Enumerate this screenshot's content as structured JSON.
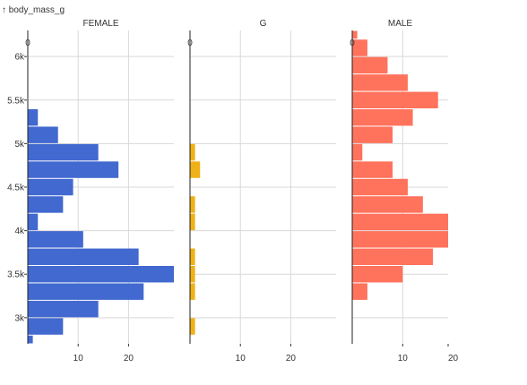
{
  "chart_data": {
    "type": "bar",
    "orientation": "horizontal",
    "ylabel": "↑ body_mass_g",
    "y_bin_width": 200,
    "ylim": [
      2700,
      6300
    ],
    "y_ticks": [
      3000,
      3500,
      4000,
      4500,
      5000,
      5500,
      6000
    ],
    "y_tick_labels": [
      "3k",
      "3.5k",
      "4k",
      "4.5k",
      "5k",
      "5.5k",
      "6k"
    ],
    "x_ticks": [
      0,
      10,
      20
    ],
    "x_tick_labels": [
      "0",
      "10",
      "20"
    ],
    "x_bottom_tick_labels": [
      "10",
      "20"
    ],
    "grid": true,
    "facets": [
      {
        "name": "FEMALE",
        "color": "#4269d0",
        "xlim": [
          0,
          29
        ],
        "bins": [
          {
            "y0": 2700,
            "y1": 2800,
            "value": 1
          },
          {
            "y0": 2800,
            "y1": 3000,
            "value": 7
          },
          {
            "y0": 3000,
            "y1": 3200,
            "value": 14
          },
          {
            "y0": 3200,
            "y1": 3400,
            "value": 23
          },
          {
            "y0": 3400,
            "y1": 3600,
            "value": 29
          },
          {
            "y0": 3600,
            "y1": 3800,
            "value": 22
          },
          {
            "y0": 3800,
            "y1": 4000,
            "value": 11
          },
          {
            "y0": 4000,
            "y1": 4200,
            "value": 2
          },
          {
            "y0": 4200,
            "y1": 4400,
            "value": 7
          },
          {
            "y0": 4400,
            "y1": 4600,
            "value": 9
          },
          {
            "y0": 4600,
            "y1": 4800,
            "value": 18
          },
          {
            "y0": 4800,
            "y1": 5000,
            "value": 14
          },
          {
            "y0": 5000,
            "y1": 5200,
            "value": 6
          },
          {
            "y0": 5200,
            "y1": 5400,
            "value": 2
          }
        ]
      },
      {
        "name": "G",
        "color": "#efb118",
        "xlim": [
          0,
          29
        ],
        "bins": [
          {
            "y0": 2800,
            "y1": 3000,
            "value": 1
          },
          {
            "y0": 3200,
            "y1": 3400,
            "value": 1
          },
          {
            "y0": 3400,
            "y1": 3600,
            "value": 1
          },
          {
            "y0": 3600,
            "y1": 3800,
            "value": 1
          },
          {
            "y0": 4000,
            "y1": 4200,
            "value": 1
          },
          {
            "y0": 4200,
            "y1": 4400,
            "value": 1
          },
          {
            "y0": 4600,
            "y1": 4800,
            "value": 2
          },
          {
            "y0": 4800,
            "y1": 5000,
            "value": 1
          }
        ]
      },
      {
        "name": "MALE",
        "color": "#ff725c",
        "xlim": [
          0,
          19
        ],
        "bins": [
          {
            "y0": 3200,
            "y1": 3400,
            "value": 3
          },
          {
            "y0": 3400,
            "y1": 3600,
            "value": 10
          },
          {
            "y0": 3600,
            "y1": 3800,
            "value": 16
          },
          {
            "y0": 3800,
            "y1": 4000,
            "value": 19
          },
          {
            "y0": 4000,
            "y1": 4200,
            "value": 19
          },
          {
            "y0": 4200,
            "y1": 4400,
            "value": 14
          },
          {
            "y0": 4400,
            "y1": 4600,
            "value": 11
          },
          {
            "y0": 4600,
            "y1": 4800,
            "value": 8
          },
          {
            "y0": 4800,
            "y1": 5000,
            "value": 2
          },
          {
            "y0": 5000,
            "y1": 5200,
            "value": 8
          },
          {
            "y0": 5200,
            "y1": 5400,
            "value": 12
          },
          {
            "y0": 5400,
            "y1": 5600,
            "value": 17
          },
          {
            "y0": 5600,
            "y1": 5800,
            "value": 11
          },
          {
            "y0": 5800,
            "y1": 6000,
            "value": 7
          },
          {
            "y0": 6000,
            "y1": 6200,
            "value": 3
          },
          {
            "y0": 6200,
            "y1": 6300,
            "value": 1
          }
        ]
      }
    ]
  }
}
